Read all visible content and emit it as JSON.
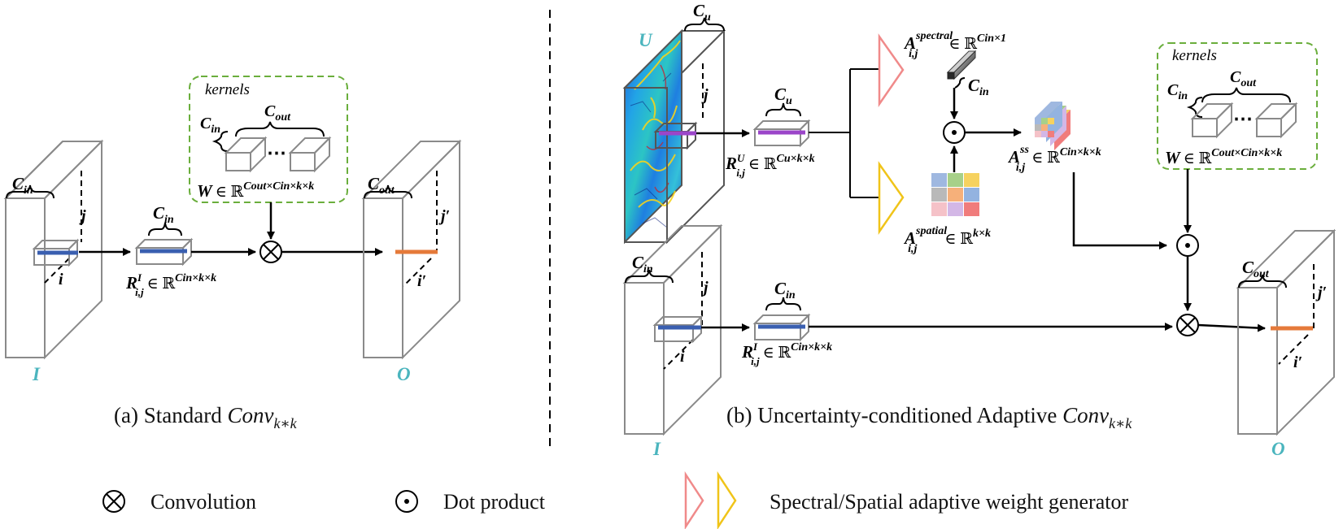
{
  "panel_a": {
    "caption_prefix": "(a) Standard ",
    "caption_conv": "Conv",
    "caption_sub": "k∗k",
    "input_label": "I",
    "output_label": "O",
    "cin": "C",
    "cin_sub": "in",
    "cout": "C",
    "cout_sub": "out",
    "idx_j": "j",
    "idx_i": "i",
    "idx_jp": "j′",
    "idx_ip": "i′",
    "kernels_label": "kernels",
    "w_sym": "W",
    "w_in": "∈ ℝ",
    "w_sup": "Cout×Cin×k×k",
    "r_sym": "R",
    "r_sup": "I",
    "r_sub": "i,j",
    "r_in": "∈ ℝ",
    "r_exp": "Cin×k×k",
    "dots": "⋯"
  },
  "panel_b": {
    "caption_prefix": "(b) Uncertainty-conditioned Adaptive ",
    "caption_conv": "Conv",
    "caption_sub": "k∗k",
    "u_label": "U",
    "input_label": "I",
    "output_label": "O",
    "cu": "C",
    "cu_sub": "u",
    "cin": "C",
    "cin_sub": "in",
    "cout": "C",
    "cout_sub": "out",
    "idx_j": "j",
    "idx_i": "i",
    "idx_jp": "j′",
    "idx_ip": "i′",
    "kernels_label": "kernels",
    "w_sym": "W",
    "w_in": "∈ ℝ",
    "w_sup": "Cout×Cin×k×k",
    "ru_sym": "R",
    "ru_sup": "U",
    "ru_sub": "i,j",
    "ru_in": "∈ ℝ",
    "ru_exp": "Cu×k×k",
    "ri_sym": "R",
    "ri_sup": "I",
    "ri_sub": "i,j",
    "ri_in": "∈ ℝ",
    "ri_exp": "Cin×k×k",
    "a_spec_sym": "A",
    "a_spec_sup": "spectral",
    "a_spec_sub": "i,j",
    "a_spec_in": "∈ ℝ",
    "a_spec_exp": "Cin×1",
    "a_spat_sym": "A",
    "a_spat_sup": "spatial",
    "a_spat_sub": "i,j",
    "a_spat_in": "∈ ℝ",
    "a_spat_exp": "k×k",
    "a_ss_sym": "A",
    "a_ss_sup": "ss",
    "a_ss_sub": "i,j",
    "a_ss_in": "∈ ℝ",
    "a_ss_exp": "Cin×k×k",
    "dots": "⋯"
  },
  "legend": {
    "conv_label": "Convolution",
    "dot_label": "Dot product",
    "gen_label": "Spectral/Spatial adaptive weight generator"
  },
  "colors": {
    "teal": "#4bb5be",
    "kernel_border": "#6aae3c",
    "spectral_triangle": "#f08a8a",
    "spatial_triangle": "#f0c419",
    "blue_slice": "#3a5fb0",
    "purple_slice": "#9b45c9",
    "orange_slice": "#e57a3a"
  },
  "spatial_grid_colors": [
    "#9fb8e0",
    "#a7d089",
    "#f6d25f",
    "#b9b9b9",
    "#f6b07a",
    "#93b3e0",
    "#f5c2c8",
    "#d3b7e6",
    "#f07c7c"
  ]
}
